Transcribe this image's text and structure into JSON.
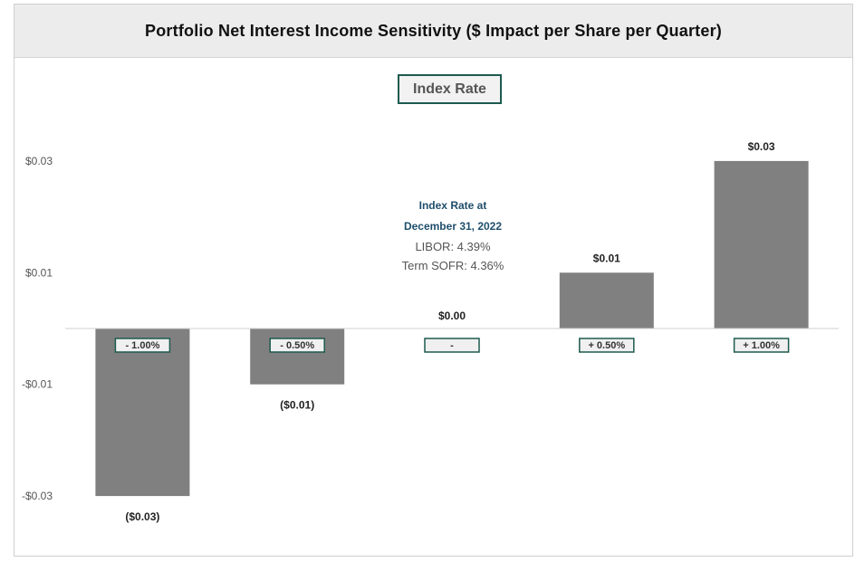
{
  "header": {
    "title": "Portfolio  Net Interest Income Sensitivity ($ Impact per Share per Quarter)"
  },
  "legend": {
    "label": "Index Rate"
  },
  "annotation": {
    "line1": "Index Rate at",
    "line2": "December 31, 2022",
    "line3": "LIBOR: 4.39%",
    "line4": "Term SOFR: 4.36%"
  },
  "colors": {
    "bar": "#808080",
    "accent": "#1d5a4f",
    "annotation": "#1f4e6b"
  },
  "chart_data": {
    "type": "bar",
    "categories": [
      "- 1.00%",
      "- 0.50%",
      "-",
      "+ 0.50%",
      "+ 1.00%"
    ],
    "values": [
      -0.03,
      -0.01,
      0.0,
      0.01,
      0.03
    ],
    "data_labels": [
      "($0.03)",
      "($0.01)",
      "$0.00",
      "$0.01",
      "$0.03"
    ],
    "yticks": [
      0.03,
      0.01,
      -0.01,
      -0.03
    ],
    "ytick_labels": [
      "$0.03",
      "$0.01",
      "-$0.01",
      "-$0.03"
    ],
    "ylim": [
      -0.03,
      0.03
    ],
    "title": "Portfolio  Net Interest Income Sensitivity ($ Impact per Share per Quarter)",
    "xlabel": "",
    "ylabel": "",
    "grid": false,
    "legend": "top-center"
  }
}
